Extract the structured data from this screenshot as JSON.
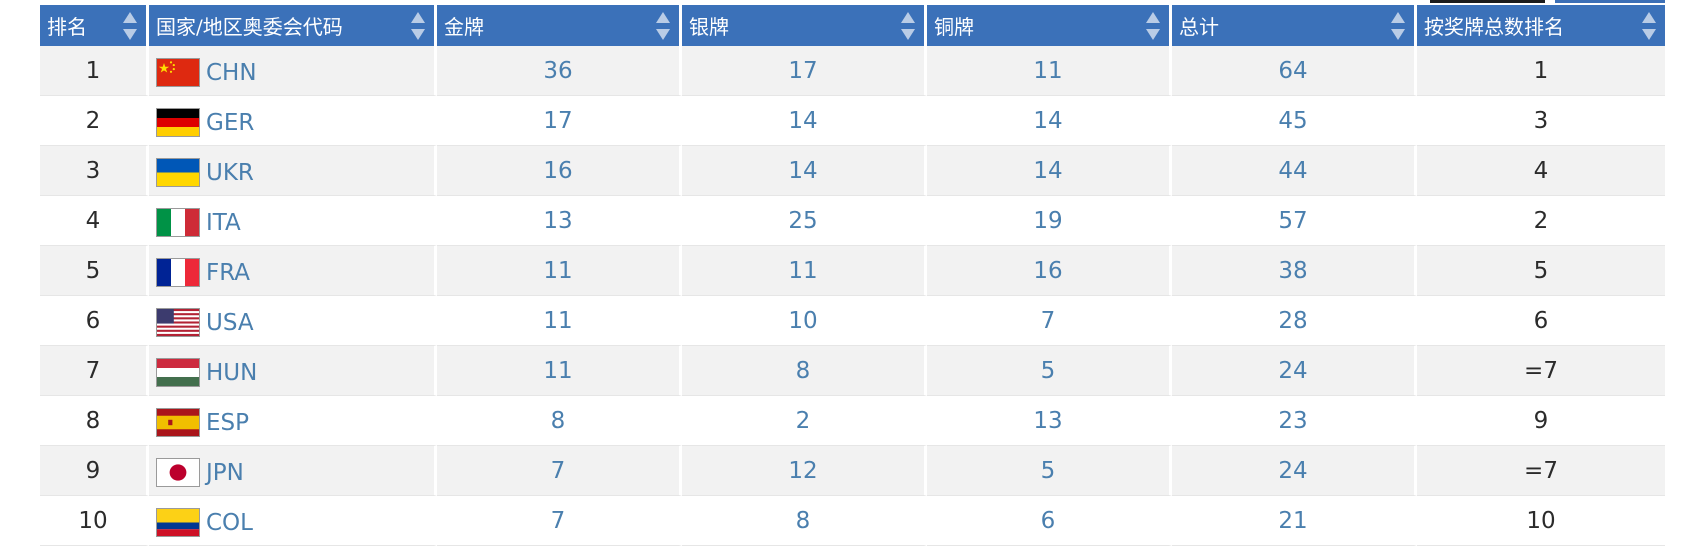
{
  "table": {
    "headers": [
      "排名",
      "国家/地区奥委会代码",
      "金牌",
      "银牌",
      "铜牌",
      "总计",
      "按奖牌总数排名"
    ],
    "rows": [
      {
        "rank": "1",
        "flag": "flag-china-icon",
        "code": "CHN",
        "gold": "36",
        "silver": "17",
        "bronze": "11",
        "total": "64",
        "total_rank": "1"
      },
      {
        "rank": "2",
        "flag": "flag-germany-icon",
        "code": "GER",
        "gold": "17",
        "silver": "14",
        "bronze": "14",
        "total": "45",
        "total_rank": "3"
      },
      {
        "rank": "3",
        "flag": "flag-ukraine-icon",
        "code": "UKR",
        "gold": "16",
        "silver": "14",
        "bronze": "14",
        "total": "44",
        "total_rank": "4"
      },
      {
        "rank": "4",
        "flag": "flag-italy-icon",
        "code": "ITA",
        "gold": "13",
        "silver": "25",
        "bronze": "19",
        "total": "57",
        "total_rank": "2"
      },
      {
        "rank": "5",
        "flag": "flag-france-icon",
        "code": "FRA",
        "gold": "11",
        "silver": "11",
        "bronze": "16",
        "total": "38",
        "total_rank": "5"
      },
      {
        "rank": "6",
        "flag": "flag-usa-icon",
        "code": "USA",
        "gold": "11",
        "silver": "10",
        "bronze": "7",
        "total": "28",
        "total_rank": "6"
      },
      {
        "rank": "7",
        "flag": "flag-hungary-icon",
        "code": "HUN",
        "gold": "11",
        "silver": "8",
        "bronze": "5",
        "total": "24",
        "total_rank": "=7"
      },
      {
        "rank": "8",
        "flag": "flag-spain-icon",
        "code": "ESP",
        "gold": "8",
        "silver": "2",
        "bronze": "13",
        "total": "23",
        "total_rank": "9"
      },
      {
        "rank": "9",
        "flag": "flag-japan-icon",
        "code": "JPN",
        "gold": "7",
        "silver": "12",
        "bronze": "5",
        "total": "24",
        "total_rank": "=7"
      },
      {
        "rank": "10",
        "flag": "flag-colombia-icon",
        "code": "COL",
        "gold": "7",
        "silver": "8",
        "bronze": "6",
        "total": "21",
        "total_rank": "10"
      }
    ]
  },
  "colors": {
    "header_bg": "#3b71b9",
    "header_text": "#ffffff",
    "link_text": "#4a7fae",
    "row_stripe": "#f2f2f2"
  }
}
